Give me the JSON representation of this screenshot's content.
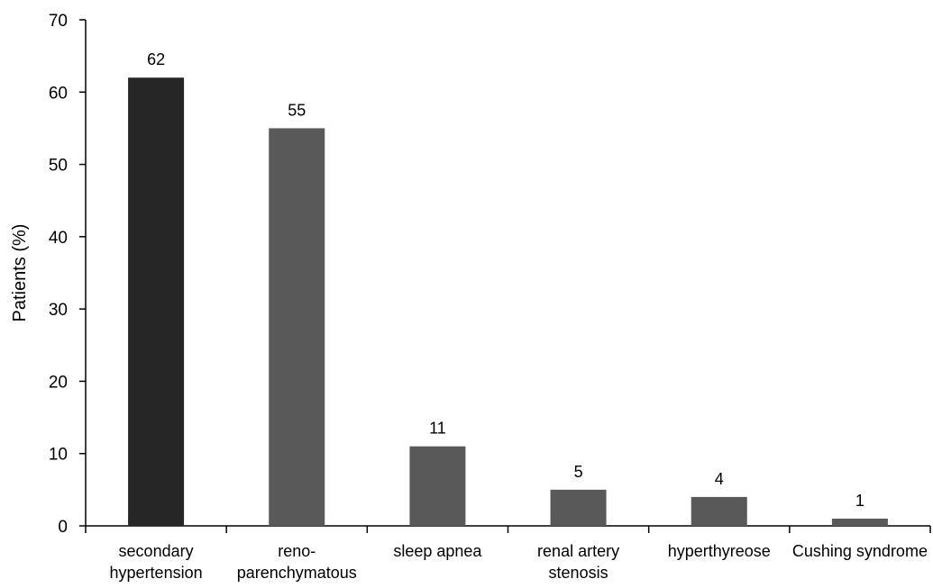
{
  "chart_data": {
    "type": "bar",
    "categories": [
      [
        "secondary",
        "hypertension"
      ],
      [
        "reno-",
        "parenchymatous"
      ],
      [
        "sleep apnea"
      ],
      [
        "renal artery",
        "stenosis"
      ],
      [
        "hyperthyreose"
      ],
      [
        "Cushing syndrome"
      ]
    ],
    "values": [
      62,
      55,
      11,
      5,
      4,
      1
    ],
    "data_labels": [
      "62",
      "55",
      "11",
      "5",
      "4",
      "1"
    ],
    "bar_colors": [
      "#262626",
      "#595959",
      "#595959",
      "#595959",
      "#595959",
      "#595959"
    ],
    "title": "",
    "xlabel": "",
    "ylabel": "Patients (%)",
    "ylim": [
      0,
      70
    ],
    "yticks": [
      0,
      10,
      20,
      30,
      40,
      50,
      60,
      70
    ],
    "grid": false,
    "legend": "none"
  }
}
